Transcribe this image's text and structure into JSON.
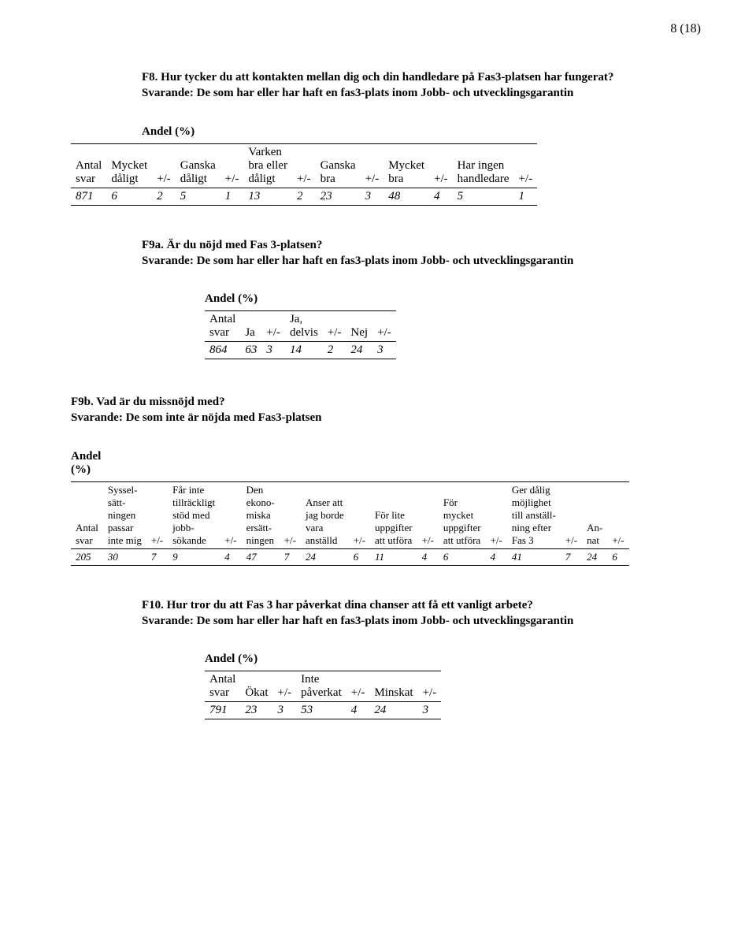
{
  "page_number": "8 (18)",
  "q_f8": {
    "title": "F8. Hur tycker du att kontakten mellan dig och din handledare på Fas3-platsen har fungerat?",
    "sub": "Svarande: De som har eller har haft en fas3-plats inom Jobb- och utvecklingsgarantin",
    "andel": "Andel (%)",
    "headers": [
      "Antal\nsvar",
      "Mycket\ndåligt",
      "+/-",
      "Ganska\ndåligt",
      "+/-",
      "Varken\nbra eller\ndåligt",
      "+/-",
      "Ganska\nbra",
      "+/-",
      "Mycket\nbra",
      "+/-",
      "Har ingen\nhandledare",
      "+/-"
    ],
    "row": [
      "871",
      "6",
      "2",
      "5",
      "1",
      "13",
      "2",
      "23",
      "3",
      "48",
      "4",
      "5",
      "1"
    ]
  },
  "q_f9a": {
    "title": "F9a. Är du nöjd med Fas 3-platsen?",
    "sub": "Svarande: De som har eller har haft en fas3-plats inom Jobb- och utvecklingsgarantin",
    "andel": "Andel (%)",
    "headers": [
      "Antal\nsvar",
      "Ja",
      "+/-",
      "Ja,\ndelvis",
      "+/-",
      "Nej",
      "+/-"
    ],
    "row": [
      "864",
      "63",
      "3",
      "14",
      "2",
      "24",
      "3"
    ]
  },
  "q_f9b": {
    "title": "F9b. Vad är du missnöjd med?",
    "sub": "Svarande: De som inte är nöjda med Fas3-platsen",
    "andel": "Andel\n(%)",
    "headers": [
      "Antal\nsvar",
      "Syssel-\nsätt-\nningen\npassar\ninte mig",
      "+/-",
      "Får inte\ntillräckligt\nstöd med\njobb-\nsökande",
      "+/-",
      "Den\nekono-\nmiska\nersätt-\nningen",
      "+/-",
      "Anser att\njag borde\nvara\nanställd",
      "+/-",
      "För lite\nuppgifter\natt utföra",
      "+/-",
      "För\nmycket\nuppgifter\natt utföra",
      "+/-",
      "Ger dålig\nmöjlighet\ntill anställ-\nning efter\nFas 3",
      "+/-",
      "An-\nnat",
      "+/-"
    ],
    "row": [
      "205",
      "30",
      "7",
      "9",
      "4",
      "47",
      "7",
      "24",
      "6",
      "11",
      "4",
      "6",
      "4",
      "41",
      "7",
      "24",
      "6"
    ]
  },
  "q_f10": {
    "title": "F10. Hur tror du att Fas 3 har påverkat dina chanser att få ett vanligt arbete?",
    "sub": "Svarande: De som har eller har haft en fas3-plats inom Jobb- och utvecklingsgarantin",
    "andel": "Andel (%)",
    "headers": [
      "Antal\nsvar",
      "Ökat",
      "+/-",
      "Inte\npåverkat",
      "+/-",
      "Minskat",
      "+/-"
    ],
    "row": [
      "791",
      "23",
      "3",
      "53",
      "4",
      "24",
      "3"
    ]
  }
}
